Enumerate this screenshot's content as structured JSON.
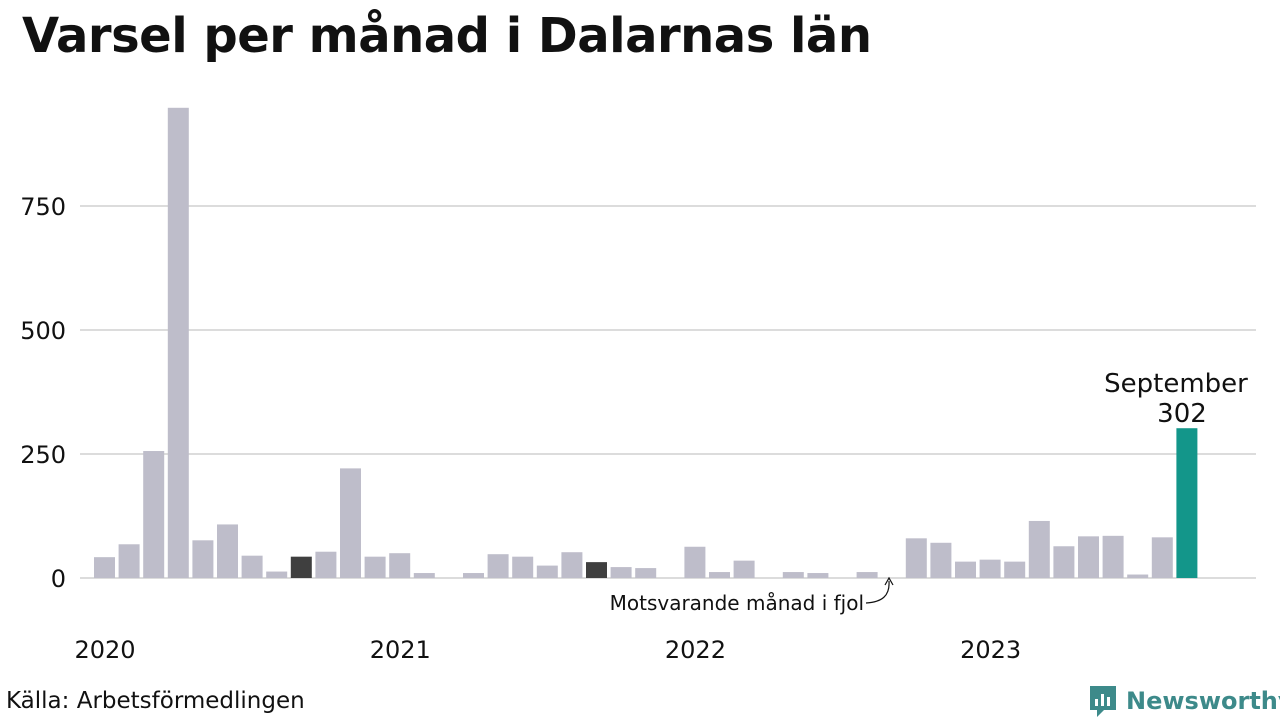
{
  "title": "Varsel per månad i Dalarnas län",
  "source": "Källa: Arbetsförmedlingen",
  "brand": "Newsworthy",
  "annotation": "Motsvarande månad i fjol",
  "highlight_label": {
    "month": "September",
    "value": "302"
  },
  "colors": {
    "bar": "#bebdca",
    "previous_year": "#3f3f3f",
    "current": "#13968a",
    "grid": "#dcdcdc",
    "brand": "#3d8a8a"
  },
  "chart_data": {
    "type": "bar",
    "title": "Varsel per månad i Dalarnas län",
    "xlabel": "",
    "ylabel": "",
    "ylim": [
      0,
      950
    ],
    "yticks": [
      0,
      250,
      500,
      750
    ],
    "year_labels": [
      {
        "label": "2020",
        "month_index": 0
      },
      {
        "label": "2021",
        "month_index": 12
      },
      {
        "label": "2022",
        "month_index": 24
      },
      {
        "label": "2023",
        "month_index": 36
      }
    ],
    "start": "2020-01",
    "values": [
      42,
      68,
      256,
      948,
      76,
      108,
      45,
      13,
      43,
      53,
      221,
      43,
      50,
      10,
      0,
      10,
      48,
      43,
      25,
      52,
      32,
      22,
      20,
      0,
      63,
      12,
      35,
      0,
      12,
      10,
      0,
      12,
      0,
      80,
      71,
      33,
      37,
      33,
      115,
      64,
      84,
      85,
      7,
      82,
      302
    ],
    "highlight_previous_year": [
      8,
      20
    ],
    "highlight_current": 44,
    "grid": true
  }
}
